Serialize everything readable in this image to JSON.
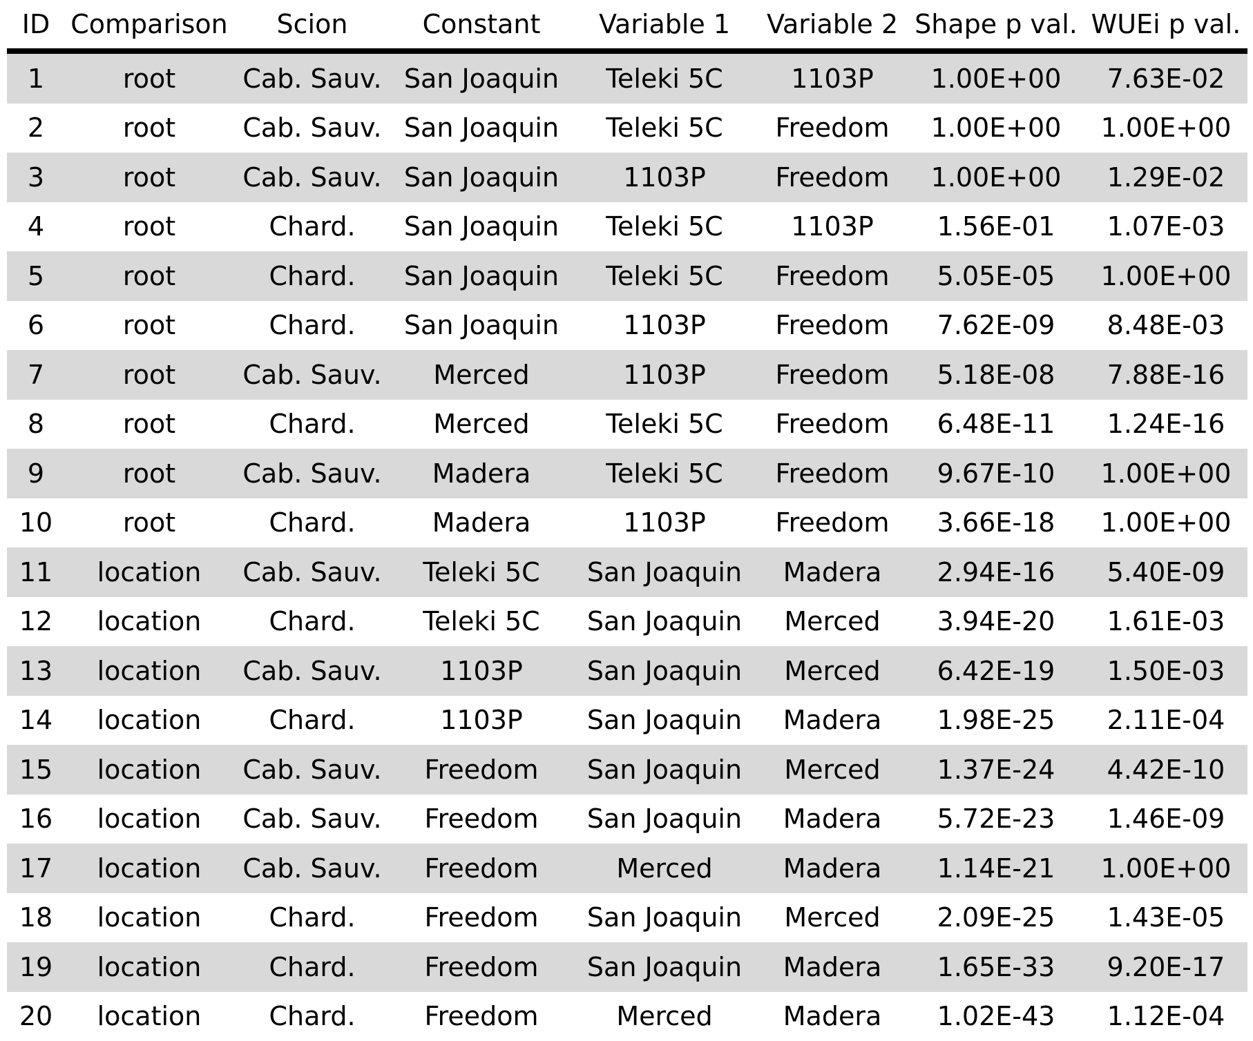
{
  "table": {
    "headers": [
      "ID",
      "Comparison",
      "Scion",
      "Constant",
      "Variable 1",
      "Variable 2",
      "Shape p val.",
      "WUEi p val."
    ],
    "rows": [
      [
        "1",
        "root",
        "Cab. Sauv.",
        "San Joaquin",
        "Teleki 5C",
        "1103P",
        "1.00E+00",
        "7.63E-02"
      ],
      [
        "2",
        "root",
        "Cab. Sauv.",
        "San Joaquin",
        "Teleki 5C",
        "Freedom",
        "1.00E+00",
        "1.00E+00"
      ],
      [
        "3",
        "root",
        "Cab. Sauv.",
        "San Joaquin",
        "1103P",
        "Freedom",
        "1.00E+00",
        "1.29E-02"
      ],
      [
        "4",
        "root",
        "Chard.",
        "San Joaquin",
        "Teleki 5C",
        "1103P",
        "1.56E-01",
        "1.07E-03"
      ],
      [
        "5",
        "root",
        "Chard.",
        "San Joaquin",
        "Teleki 5C",
        "Freedom",
        "5.05E-05",
        "1.00E+00"
      ],
      [
        "6",
        "root",
        "Chard.",
        "San Joaquin",
        "1103P",
        "Freedom",
        "7.62E-09",
        "8.48E-03"
      ],
      [
        "7",
        "root",
        "Cab. Sauv.",
        "Merced",
        "1103P",
        "Freedom",
        "5.18E-08",
        "7.88E-16"
      ],
      [
        "8",
        "root",
        "Chard.",
        "Merced",
        "Teleki 5C",
        "Freedom",
        "6.48E-11",
        "1.24E-16"
      ],
      [
        "9",
        "root",
        "Cab. Sauv.",
        "Madera",
        "Teleki 5C",
        "Freedom",
        "9.67E-10",
        "1.00E+00"
      ],
      [
        "10",
        "root",
        "Chard.",
        "Madera",
        "1103P",
        "Freedom",
        "3.66E-18",
        "1.00E+00"
      ],
      [
        "11",
        "location",
        "Cab. Sauv.",
        "Teleki 5C",
        "San Joaquin",
        "Madera",
        "2.94E-16",
        "5.40E-09"
      ],
      [
        "12",
        "location",
        "Chard.",
        "Teleki 5C",
        "San Joaquin",
        "Merced",
        "3.94E-20",
        "1.61E-03"
      ],
      [
        "13",
        "location",
        "Cab. Sauv.",
        "1103P",
        "San Joaquin",
        "Merced",
        "6.42E-19",
        "1.50E-03"
      ],
      [
        "14",
        "location",
        "Chard.",
        "1103P",
        "San Joaquin",
        "Madera",
        "1.98E-25",
        "2.11E-04"
      ],
      [
        "15",
        "location",
        "Cab. Sauv.",
        "Freedom",
        "San Joaquin",
        "Merced",
        "1.37E-24",
        "4.42E-10"
      ],
      [
        "16",
        "location",
        "Cab. Sauv.",
        "Freedom",
        "San Joaquin",
        "Madera",
        "5.72E-23",
        "1.46E-09"
      ],
      [
        "17",
        "location",
        "Cab. Sauv.",
        "Freedom",
        "Merced",
        "Madera",
        "1.14E-21",
        "1.00E+00"
      ],
      [
        "18",
        "location",
        "Chard.",
        "Freedom",
        "San Joaquin",
        "Merced",
        "2.09E-25",
        "1.43E-05"
      ],
      [
        "19",
        "location",
        "Chard.",
        "Freedom",
        "San Joaquin",
        "Madera",
        "1.65E-33",
        "9.20E-17"
      ],
      [
        "20",
        "location",
        "Chard.",
        "Freedom",
        "Merced",
        "Madera",
        "1.02E-43",
        "1.12E-04"
      ]
    ]
  },
  "colors": {
    "row_stripe": "#d9d9d9",
    "row_plain": "#ffffff",
    "header_rule": "#000000",
    "text": "#000000"
  }
}
